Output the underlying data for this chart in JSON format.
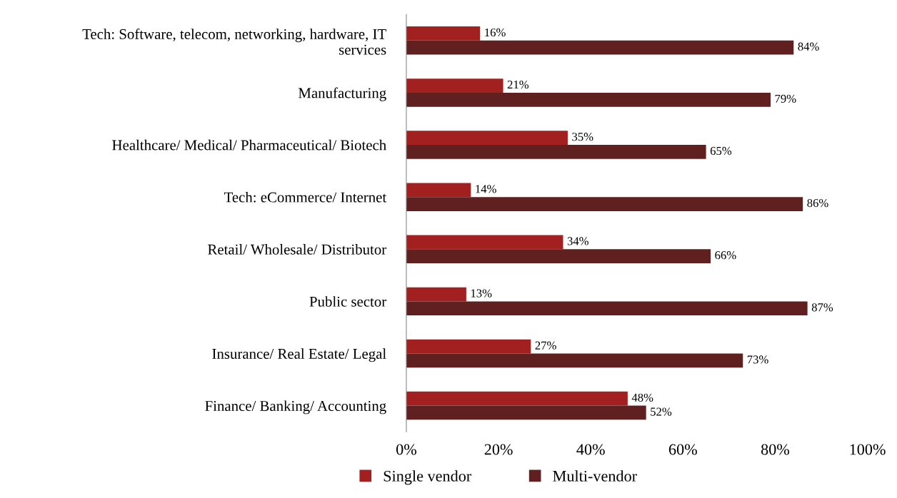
{
  "chart_data": {
    "type": "bar",
    "orientation": "horizontal",
    "categories": [
      "Tech: Software, telecom, networking, hardware, IT services",
      "Manufacturing",
      "Healthcare/ Medical/ Pharmaceutical/ Biotech",
      "Tech: eCommerce/ Internet",
      "Retail/ Wholesale/ Distributor",
      "Public sector",
      "Insurance/ Real Estate/ Legal",
      "Finance/ Banking/ Accounting"
    ],
    "series": [
      {
        "name": "Single vendor",
        "color": "#a32020",
        "values": [
          16,
          21,
          35,
          14,
          34,
          13,
          27,
          48
        ],
        "value_labels": [
          "16%",
          "21%",
          "35%",
          "14%",
          "34%",
          "13%",
          "27%",
          "48%"
        ]
      },
      {
        "name": "Multi-vendor",
        "color": "#602020",
        "values": [
          84,
          79,
          65,
          86,
          66,
          87,
          73,
          52
        ],
        "value_labels": [
          "84%",
          "79%",
          "65%",
          "86%",
          "66%",
          "87%",
          "73%",
          "52%"
        ]
      }
    ],
    "xlim": [
      0,
      100
    ],
    "xticks": [
      {
        "value": 0,
        "label": "0%"
      },
      {
        "value": 20,
        "label": "20%"
      },
      {
        "value": 40,
        "label": "40%"
      },
      {
        "value": 60,
        "label": "60%"
      },
      {
        "value": 80,
        "label": "80%"
      },
      {
        "value": 100,
        "label": "100%"
      }
    ],
    "grid": false,
    "legend": "bottom"
  }
}
